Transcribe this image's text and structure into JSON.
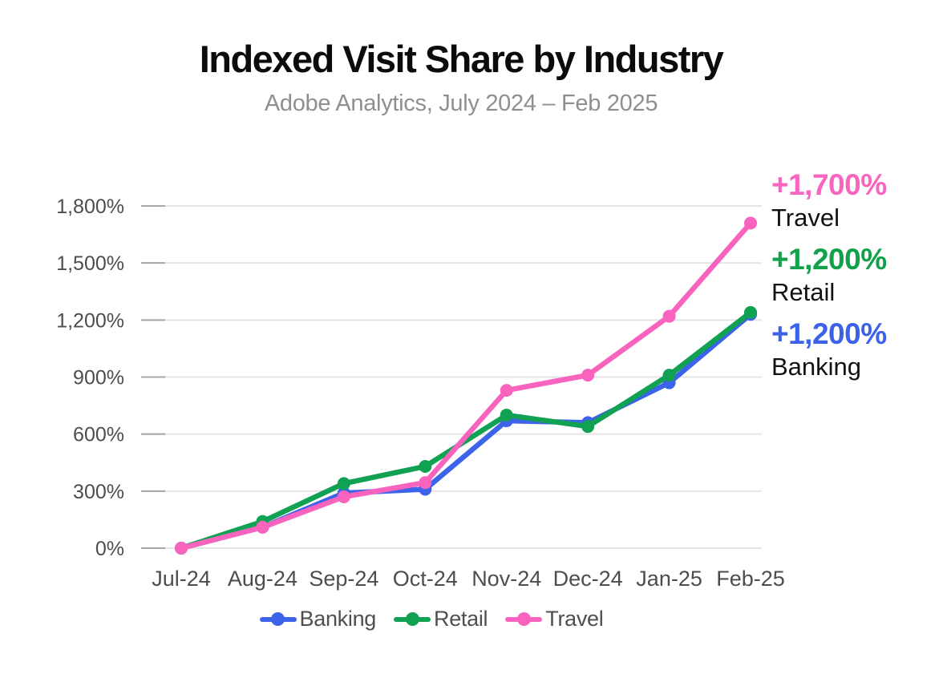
{
  "title": "Indexed Visit Share by Industry",
  "subtitle": "Adobe Analytics, July 2024 – Feb 2025",
  "colors": {
    "background": "#FFFFFF",
    "title": "#0B0B0B",
    "subtitle": "#8F8F8F",
    "axis_label": "#4D4D4D",
    "gridline": "#E4E4E4",
    "tick": "#A6A6A6",
    "legend_label": "#4F4F4F",
    "banking": "#3C63E9",
    "retail": "#10A153",
    "travel": "#F863BE"
  },
  "annotations": [
    {
      "value": "+1,700%",
      "label": "Travel",
      "color": "#F964BE"
    },
    {
      "value": "+1,200%",
      "label": "Retail",
      "color": "#12A14B"
    },
    {
      "value": "+1,200%",
      "label": "Banking",
      "color": "#3B62E8"
    }
  ],
  "chart_data": {
    "type": "line",
    "title": "Indexed Visit Share by Industry",
    "subtitle": "Adobe Analytics, July 2024 – Feb 2025",
    "categories": [
      "Jul-24",
      "Aug-24",
      "Sep-24",
      "Oct-24",
      "Nov-24",
      "Dec-24",
      "Jan-25",
      "Feb-25"
    ],
    "series": [
      {
        "name": "Banking",
        "color": "#3C63E9",
        "values": [
          0,
          110,
          290,
          310,
          670,
          660,
          870,
          1230
        ]
      },
      {
        "name": "Retail",
        "color": "#10A153",
        "values": [
          0,
          140,
          340,
          430,
          700,
          640,
          910,
          1240
        ]
      },
      {
        "name": "Travel",
        "color": "#F863BE",
        "values": [
          0,
          110,
          270,
          345,
          830,
          910,
          1220,
          1710
        ]
      }
    ],
    "xlabel": "",
    "ylabel": "",
    "ylim": [
      0,
      1800
    ],
    "y_ticks": [
      0,
      300,
      600,
      900,
      1200,
      1500,
      1800
    ],
    "ytick_labels": [
      "0%",
      "300%",
      "600%",
      "900%",
      "1,200%",
      "1,500%",
      "1,800%"
    ],
    "grid": "horizontal",
    "legend_position": "bottom"
  }
}
